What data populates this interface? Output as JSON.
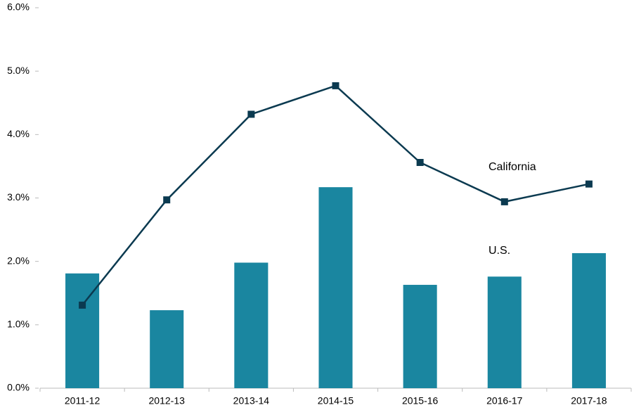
{
  "chart_data": {
    "type": "bar+line",
    "categories": [
      "2011-12",
      "2012-13",
      "2013-14",
      "2014-15",
      "2015-16",
      "2016-17",
      "2017-18"
    ],
    "series": [
      {
        "name": "U.S.",
        "type": "bar",
        "color": "#1a86a0",
        "values": [
          1.81,
          1.23,
          1.98,
          3.17,
          1.63,
          1.76,
          2.13
        ]
      },
      {
        "name": "California",
        "type": "line",
        "color": "#0b3a50",
        "values": [
          1.31,
          2.97,
          4.32,
          4.77,
          3.56,
          2.94,
          3.22
        ]
      }
    ],
    "ylim": [
      0,
      6
    ],
    "yticks": [
      {
        "value": 0,
        "label": "0.0%"
      },
      {
        "value": 1,
        "label": "1.0%"
      },
      {
        "value": 2,
        "label": "2.0%"
      },
      {
        "value": 3,
        "label": "3.0%"
      },
      {
        "value": 4,
        "label": "4.0%"
      },
      {
        "value": 5,
        "label": "5.0%"
      },
      {
        "value": 6,
        "label": "6.0%"
      }
    ],
    "grid": false
  }
}
